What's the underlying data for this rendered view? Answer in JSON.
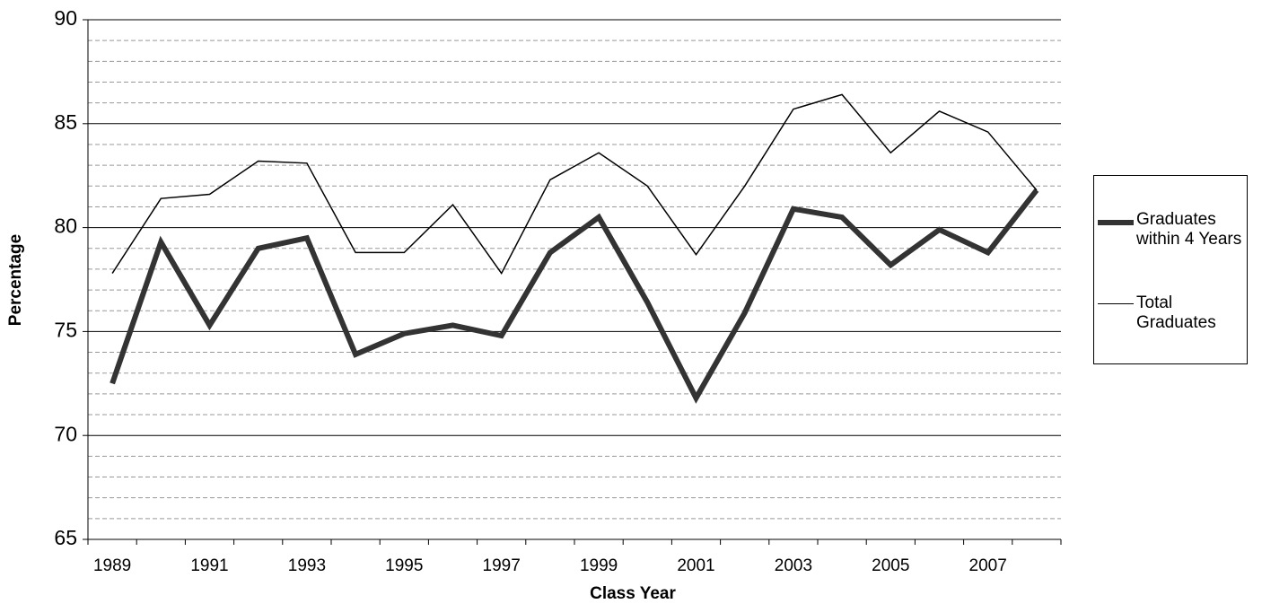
{
  "chart_data": {
    "type": "line",
    "xlabel": "Class Year",
    "ylabel": "Percentage",
    "categories": [
      "1989",
      null,
      "1991",
      null,
      "1993",
      null,
      "1995",
      null,
      "1997",
      null,
      "1999",
      null,
      "2001",
      null,
      "2003",
      null,
      "2005",
      null,
      "2007",
      null
    ],
    "series": [
      {
        "name": "Graduates within 4 Years",
        "color": "#333333",
        "width": 6,
        "values": [
          72.5,
          79.3,
          75.3,
          79.0,
          79.5,
          73.9,
          74.9,
          75.3,
          74.8,
          78.8,
          80.5,
          76.4,
          71.8,
          75.9,
          80.9,
          80.5,
          78.2,
          79.9,
          78.8,
          81.8
        ]
      },
      {
        "name": "Total Graduates",
        "color": "#000000",
        "width": 1.5,
        "values": [
          77.8,
          81.4,
          81.6,
          83.2,
          83.1,
          78.8,
          78.8,
          81.1,
          77.8,
          82.3,
          83.6,
          82.0,
          78.7,
          82.0,
          85.7,
          86.4,
          83.6,
          85.6,
          84.6,
          81.8
        ]
      }
    ],
    "ylim": [
      65,
      90
    ],
    "yticks": [
      65,
      70,
      75,
      80,
      85,
      90
    ],
    "minor_yticks": [
      66,
      67,
      68,
      69,
      71,
      72,
      73,
      74,
      76,
      77,
      78,
      79,
      81,
      82,
      83,
      84,
      86,
      87,
      88,
      89
    ],
    "grid": true,
    "legend": "right"
  }
}
